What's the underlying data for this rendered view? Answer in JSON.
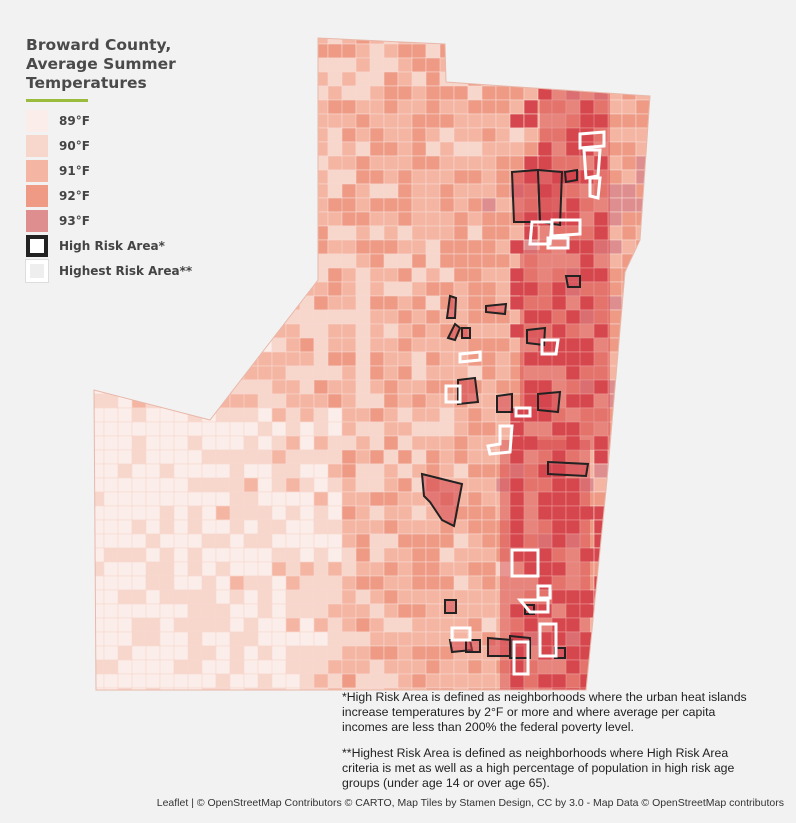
{
  "legend": {
    "title_lines": [
      "Broward County,",
      "Average Summer",
      "Temperatures"
    ],
    "items": [
      {
        "label": "89°F",
        "color": "#fbeeea"
      },
      {
        "label": "90°F",
        "color": "#f7d7cc"
      },
      {
        "label": "91°F",
        "color": "#f4b6a3"
      },
      {
        "label": "92°F",
        "color": "#ee9a84"
      },
      {
        "label": "93°F",
        "color": "#de8e8f"
      }
    ],
    "high_risk_label": "High Risk Area*",
    "highest_risk_label": "Highest Risk Area**"
  },
  "notes": {
    "high_risk": "*High Risk Area is defined as neighborhoods where the urban heat islands increase temperatures by 2°F or more and where average per capita incomes are less than 200% the federal poverty level.",
    "highest_risk": "**Highest Risk Area is defined as neighborhoods where High Risk Area criteria is met as well as a high percentage of population in high risk age groups (under age 14 or over age 65)."
  },
  "attribution": "Leaflet | © OpenStreetMap Contributors © CARTO, Map Tiles by Stamen Design, CC by 3.0 - Map Data © OpenStreetMap contributors",
  "map": {
    "accent_rule_color": "#9bbb3c",
    "high_risk_outline_color": "#222222",
    "highest_risk_outline_color": "#ffffff",
    "dark_tone_color": "#d6464e"
  }
}
